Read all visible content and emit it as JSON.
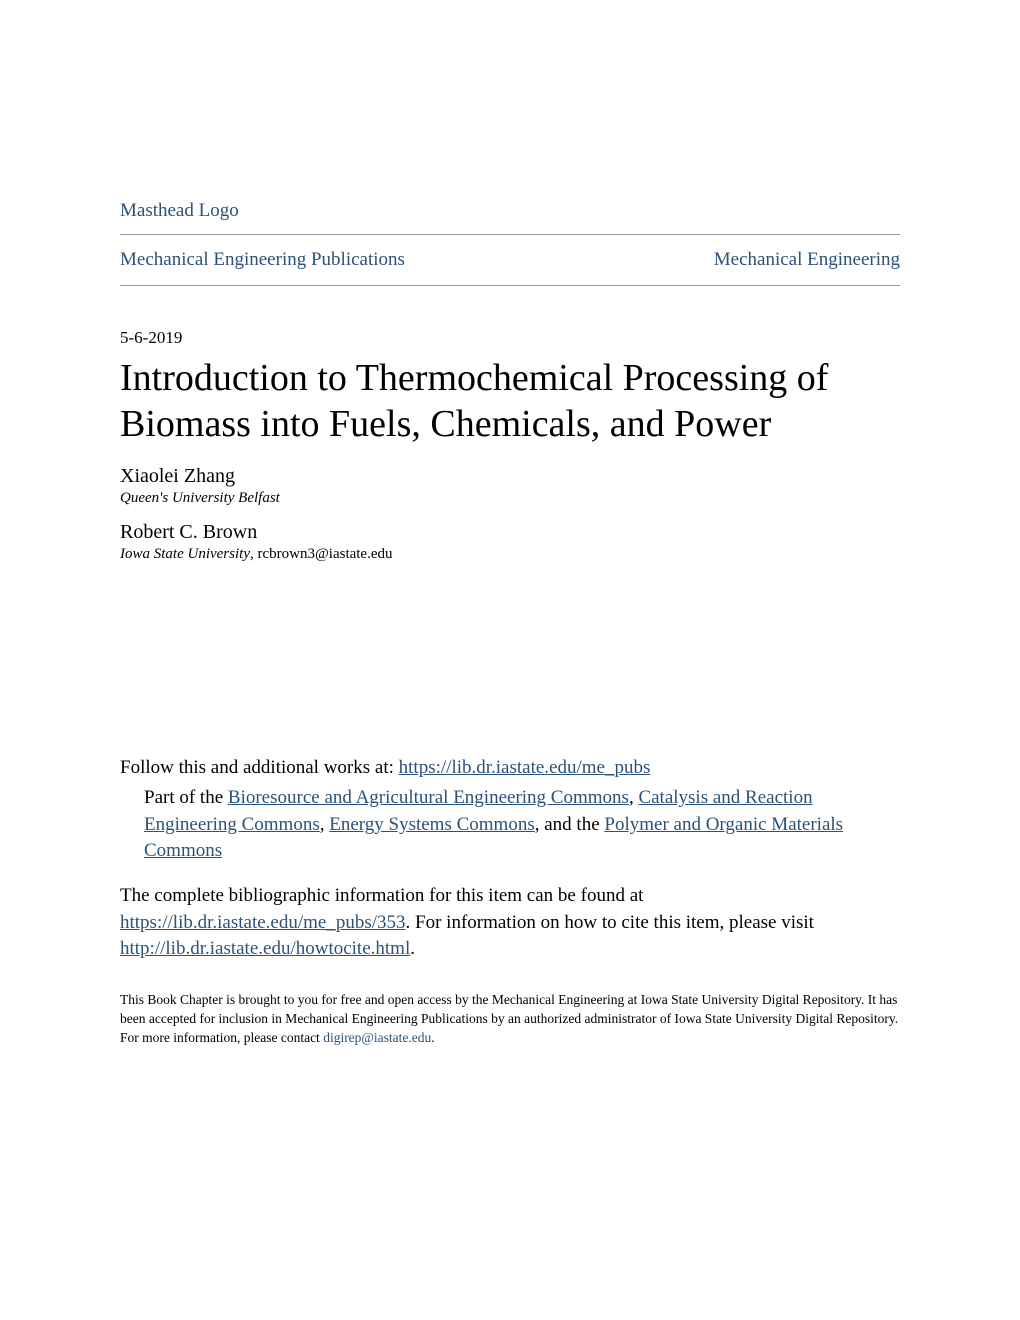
{
  "masthead": {
    "logo_text": "Masthead Logo"
  },
  "nav": {
    "left": "Mechanical Engineering Publications",
    "right": "Mechanical Engineering"
  },
  "date": "5-6-2019",
  "title": "Introduction to Thermochemical Processing of Biomass into Fuels, Chemicals, and Power",
  "authors": [
    {
      "name": "Xiaolei Zhang",
      "affiliation": "Queen's University Belfast",
      "email": ""
    },
    {
      "name": "Robert C. Brown",
      "affiliation": "Iowa State University",
      "email": ", rcbrown3@iastate.edu"
    }
  ],
  "follow": {
    "prefix": "Follow this and additional works at: ",
    "link": "https://lib.dr.iastate.edu/me_pubs"
  },
  "part_of": {
    "prefix": "Part of the ",
    "link1": "Bioresource and Agricultural Engineering Commons",
    "sep1": ", ",
    "link2": "Catalysis and Reaction Engineering Commons",
    "sep2": ", ",
    "link3": "Energy Systems Commons",
    "sep3": ", and the ",
    "link4": "Polymer and Organic Materials Commons"
  },
  "biblio": {
    "text1": "The complete bibliographic information for this item can be found at ",
    "link1": "https://lib.dr.iastate.edu/me_pubs/353",
    "text2": ". For information on how to cite this item, please visit ",
    "link2": "http://lib.dr.iastate.edu/howtocite.html",
    "text3": "."
  },
  "footer": {
    "text1": "This Book Chapter is brought to you for free and open access by the Mechanical Engineering at Iowa State University Digital Repository. It has been accepted for inclusion in Mechanical Engineering Publications by an authorized administrator of Iowa State University Digital Repository. For more information, please contact ",
    "link": "digirep@iastate.edu",
    "text2": "."
  }
}
